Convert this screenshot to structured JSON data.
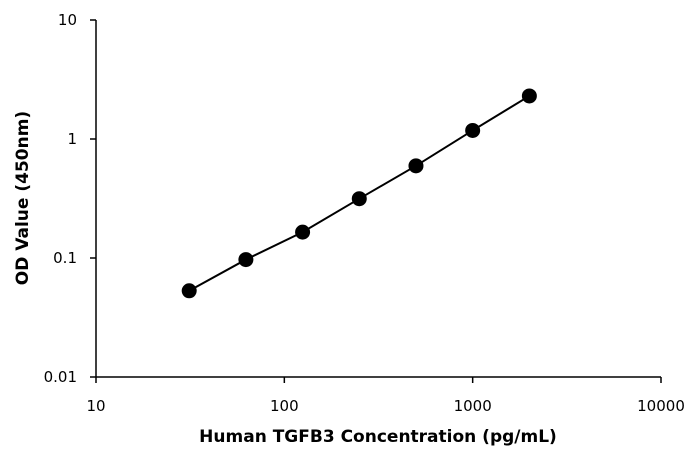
{
  "chart_data": {
    "type": "scatter",
    "title": "",
    "xlabel": "Human TGFB3 Concentration (pg/mL)",
    "ylabel": "OD Value (450nm)",
    "xscale": "log",
    "yscale": "log",
    "xlim": [
      10,
      10000
    ],
    "ylim": [
      0.01,
      10
    ],
    "grid": false,
    "legend": "none",
    "x_ticks": [
      "10",
      "100",
      "1000",
      "10000"
    ],
    "y_ticks": [
      "0.01",
      "0.1",
      "1",
      "10"
    ],
    "series": [
      {
        "x": [
          31.25,
          62.5,
          125,
          250,
          500,
          1000,
          2000
        ],
        "y": [
          0.053,
          0.097,
          0.165,
          0.315,
          0.595,
          1.18,
          2.3
        ],
        "marker": "circle",
        "line": true,
        "color": "#000000"
      }
    ]
  }
}
